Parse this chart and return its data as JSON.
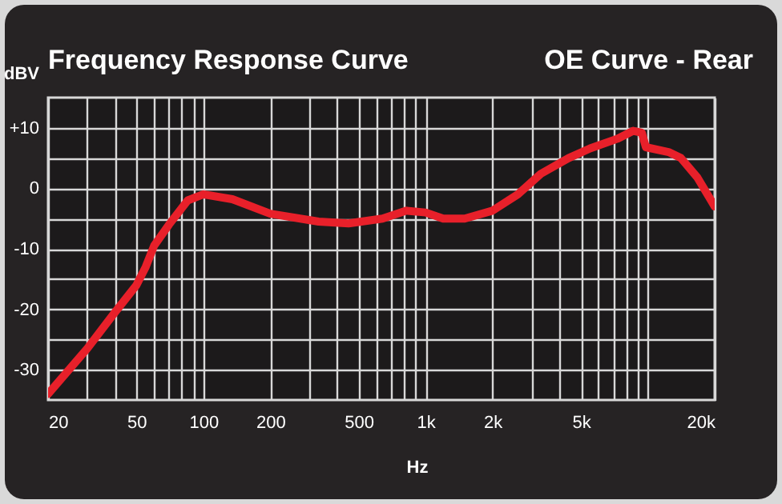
{
  "chart_data": {
    "type": "line",
    "title": "Frequency Response Curve",
    "subtitle": "OE Curve - Rear",
    "xlabel": "Hz",
    "ylabel": "dBV",
    "log": "x",
    "grid": true,
    "marker": "none",
    "line_style": "solid",
    "xlim": [
      20,
      20000
    ],
    "ylim": [
      -35,
      15
    ],
    "xticks": [
      20,
      {
        "value": 30,
        "label": null
      },
      {
        "value": 40,
        "label": null
      },
      50,
      {
        "value": 60,
        "label": null
      },
      {
        "value": 70,
        "label": null
      },
      {
        "value": 80,
        "label": null
      },
      {
        "value": 90,
        "label": null
      },
      100,
      200,
      {
        "value": 300,
        "label": null
      },
      {
        "value": 400,
        "label": null
      },
      500,
      {
        "value": 600,
        "label": null
      },
      {
        "value": 700,
        "label": null
      },
      {
        "value": 800,
        "label": null
      },
      {
        "value": 900,
        "label": null
      },
      {
        "value": 1000,
        "label": "1k"
      },
      {
        "value": 2000,
        "label": "2k"
      },
      {
        "value": 3000,
        "label": null
      },
      {
        "value": 4000,
        "label": null
      },
      {
        "value": 5000,
        "label": "5k"
      },
      {
        "value": 6000,
        "label": null
      },
      {
        "value": 7000,
        "label": null
      },
      {
        "value": 8000,
        "label": null
      },
      {
        "value": 9000,
        "label": null
      },
      {
        "value": 10000,
        "label": null
      },
      {
        "value": 20000,
        "label": "20k"
      }
    ],
    "yticks": [
      -30,
      {
        "value": -25,
        "label": null
      },
      -20,
      {
        "value": -15,
        "label": null
      },
      -10,
      {
        "value": -5,
        "label": null
      },
      0,
      {
        "value": 5,
        "label": null
      },
      {
        "value": 10,
        "label": "+10"
      }
    ],
    "x": [
      20,
      30,
      40,
      50,
      55,
      60,
      70,
      85,
      100,
      135,
      200,
      330,
      450,
      640,
      820,
      1000,
      1200,
      1500,
      2000,
      2600,
      3300,
      4400,
      5500,
      7300,
      8600,
      9400,
      9800,
      12400,
      14100,
      16700,
      20000
    ],
    "series": [
      {
        "color": "#e8202a",
        "values": [
          -34,
          -26.5,
          -20.5,
          -16,
          -13,
          -9.5,
          -6,
          -2,
          -1,
          -1.8,
          -4.2,
          -5.5,
          -5.8,
          -5,
          -3.7,
          -4,
          -5,
          -5,
          -3.7,
          -1,
          2.4,
          5,
          6.6,
          8.2,
          9.5,
          9.2,
          6.8,
          6,
          5,
          1.8,
          -3
        ]
      }
    ]
  }
}
